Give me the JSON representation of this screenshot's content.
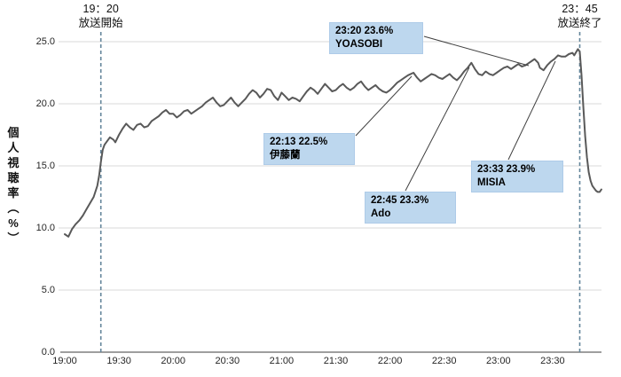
{
  "header": {
    "start_marker": {
      "time": "19：20",
      "caption": "放送開始"
    },
    "end_marker": {
      "time": "23：45",
      "caption": "放送終了"
    }
  },
  "y_axis": {
    "title": "個人視聴率（%）",
    "title_chars": [
      "個",
      "人",
      "視",
      "聴",
      "率",
      "︵",
      "%",
      "︶"
    ],
    "ticks": [
      "25.0",
      "20.0",
      "15.0",
      "10.0",
      "5.0",
      "0.0"
    ]
  },
  "x_axis": {
    "ticks": [
      "19:00",
      "19:30",
      "20:00",
      "20:30",
      "21:00",
      "21:30",
      "22:00",
      "22:30",
      "23:00",
      "23:30"
    ]
  },
  "annotations": [
    {
      "line1": "23:20  23.6%",
      "line2": "YOASOBI"
    },
    {
      "line1": "22:13  22.5%",
      "line2": "伊藤蘭"
    },
    {
      "line1": "22:45  23.3%",
      "line2": "Ado"
    },
    {
      "line1": "23:33  23.9%",
      "line2": "MISIA"
    }
  ],
  "colors": {
    "line": "#595959",
    "gridline": "#d9d9d9",
    "axis": "#7f7f7f",
    "marker_dash": "#64869b",
    "leader": "#404040",
    "annotation_fill": "#BDD7EE"
  },
  "chart_data": {
    "type": "line",
    "title": "",
    "ylabel": "個人視聴率（%）",
    "xlabel": "",
    "ylim": [
      0,
      25
    ],
    "y_gridlines": [
      5,
      10,
      15,
      20,
      25
    ],
    "x_tick_minutes": [
      0,
      30,
      60,
      90,
      120,
      150,
      180,
      210,
      240,
      270
    ],
    "x_unit": "minutes after 19:00",
    "grid": "horizontal only",
    "legend": "none",
    "line_color": "#595959",
    "markers": [
      {
        "time": "19:20",
        "label": "放送開始",
        "minute": 20
      },
      {
        "time": "23:45",
        "label": "放送終了",
        "minute": 285
      }
    ],
    "highlights": [
      {
        "time": "23:20",
        "value": 23.6,
        "label": "YOASOBI",
        "minute": 260
      },
      {
        "time": "22:13",
        "value": 22.5,
        "label": "伊藤蘭",
        "minute": 193
      },
      {
        "time": "22:45",
        "value": 23.3,
        "label": "Ado",
        "minute": 225
      },
      {
        "time": "23:33",
        "value": 23.9,
        "label": "MISIA",
        "minute": 273
      }
    ],
    "series": [
      {
        "name": "個人視聴率",
        "points": [
          [
            0,
            9.5
          ],
          [
            2,
            9.3
          ],
          [
            4,
            9.9
          ],
          [
            6,
            10.3
          ],
          [
            8,
            10.6
          ],
          [
            10,
            11.0
          ],
          [
            12,
            11.5
          ],
          [
            14,
            12.0
          ],
          [
            16,
            12.5
          ],
          [
            18,
            13.4
          ],
          [
            19,
            14.2
          ],
          [
            20,
            15.3
          ],
          [
            21,
            16.3
          ],
          [
            22,
            16.7
          ],
          [
            23,
            16.9
          ],
          [
            25,
            17.3
          ],
          [
            27,
            17.1
          ],
          [
            28,
            16.9
          ],
          [
            30,
            17.5
          ],
          [
            32,
            18.0
          ],
          [
            34,
            18.4
          ],
          [
            36,
            18.1
          ],
          [
            38,
            17.9
          ],
          [
            40,
            18.3
          ],
          [
            42,
            18.4
          ],
          [
            44,
            18.1
          ],
          [
            46,
            18.2
          ],
          [
            48,
            18.6
          ],
          [
            50,
            18.8
          ],
          [
            52,
            19.0
          ],
          [
            54,
            19.3
          ],
          [
            56,
            19.5
          ],
          [
            58,
            19.2
          ],
          [
            60,
            19.2
          ],
          [
            62,
            18.9
          ],
          [
            64,
            19.1
          ],
          [
            66,
            19.4
          ],
          [
            68,
            19.5
          ],
          [
            70,
            19.2
          ],
          [
            72,
            19.4
          ],
          [
            74,
            19.6
          ],
          [
            76,
            19.8
          ],
          [
            78,
            20.1
          ],
          [
            80,
            20.3
          ],
          [
            82,
            20.5
          ],
          [
            84,
            20.1
          ],
          [
            86,
            19.8
          ],
          [
            88,
            19.9
          ],
          [
            90,
            20.2
          ],
          [
            92,
            20.5
          ],
          [
            94,
            20.1
          ],
          [
            96,
            19.8
          ],
          [
            98,
            20.1
          ],
          [
            100,
            20.4
          ],
          [
            102,
            20.8
          ],
          [
            104,
            21.1
          ],
          [
            106,
            20.9
          ],
          [
            108,
            20.5
          ],
          [
            110,
            20.8
          ],
          [
            112,
            21.2
          ],
          [
            114,
            21.1
          ],
          [
            116,
            20.6
          ],
          [
            118,
            20.3
          ],
          [
            120,
            20.9
          ],
          [
            122,
            20.6
          ],
          [
            124,
            20.3
          ],
          [
            126,
            20.5
          ],
          [
            128,
            20.4
          ],
          [
            130,
            20.2
          ],
          [
            132,
            20.6
          ],
          [
            134,
            21.0
          ],
          [
            136,
            21.3
          ],
          [
            138,
            21.1
          ],
          [
            140,
            20.8
          ],
          [
            142,
            21.2
          ],
          [
            144,
            21.6
          ],
          [
            146,
            21.3
          ],
          [
            148,
            21.0
          ],
          [
            150,
            21.1
          ],
          [
            152,
            21.4
          ],
          [
            154,
            21.6
          ],
          [
            156,
            21.3
          ],
          [
            158,
            21.1
          ],
          [
            160,
            21.3
          ],
          [
            162,
            21.6
          ],
          [
            164,
            21.8
          ],
          [
            166,
            21.4
          ],
          [
            168,
            21.1
          ],
          [
            170,
            21.3
          ],
          [
            172,
            21.5
          ],
          [
            174,
            21.2
          ],
          [
            176,
            21.0
          ],
          [
            178,
            20.9
          ],
          [
            180,
            21.1
          ],
          [
            182,
            21.4
          ],
          [
            184,
            21.7
          ],
          [
            186,
            21.9
          ],
          [
            188,
            22.1
          ],
          [
            190,
            22.3
          ],
          [
            193,
            22.5
          ],
          [
            195,
            22.1
          ],
          [
            197,
            21.8
          ],
          [
            199,
            22.0
          ],
          [
            201,
            22.2
          ],
          [
            203,
            22.4
          ],
          [
            205,
            22.3
          ],
          [
            207,
            22.1
          ],
          [
            209,
            22.0
          ],
          [
            211,
            22.2
          ],
          [
            213,
            22.4
          ],
          [
            215,
            22.1
          ],
          [
            217,
            21.9
          ],
          [
            219,
            22.2
          ],
          [
            221,
            22.6
          ],
          [
            223,
            22.9
          ],
          [
            225,
            23.3
          ],
          [
            227,
            22.8
          ],
          [
            229,
            22.4
          ],
          [
            231,
            22.3
          ],
          [
            233,
            22.6
          ],
          [
            235,
            22.4
          ],
          [
            237,
            22.3
          ],
          [
            239,
            22.5
          ],
          [
            241,
            22.7
          ],
          [
            243,
            22.9
          ],
          [
            245,
            23.0
          ],
          [
            247,
            22.8
          ],
          [
            249,
            23.0
          ],
          [
            251,
            23.2
          ],
          [
            253,
            23.0
          ],
          [
            255,
            23.1
          ],
          [
            257,
            23.3
          ],
          [
            259,
            23.5
          ],
          [
            260,
            23.6
          ],
          [
            262,
            23.3
          ],
          [
            263,
            22.9
          ],
          [
            265,
            22.7
          ],
          [
            267,
            23.1
          ],
          [
            269,
            23.4
          ],
          [
            271,
            23.6
          ],
          [
            273,
            23.9
          ],
          [
            275,
            23.8
          ],
          [
            277,
            23.8
          ],
          [
            279,
            24.0
          ],
          [
            281,
            24.1
          ],
          [
            282,
            23.9
          ],
          [
            284,
            24.4
          ],
          [
            285,
            24.2
          ],
          [
            286,
            22.3
          ],
          [
            287,
            19.8
          ],
          [
            288,
            17.4
          ],
          [
            289,
            15.7
          ],
          [
            290,
            14.5
          ],
          [
            291,
            13.8
          ],
          [
            292,
            13.4
          ],
          [
            293,
            13.2
          ],
          [
            294,
            13.0
          ],
          [
            295,
            12.9
          ],
          [
            296,
            12.9
          ],
          [
            297,
            13.1
          ]
        ]
      }
    ]
  }
}
